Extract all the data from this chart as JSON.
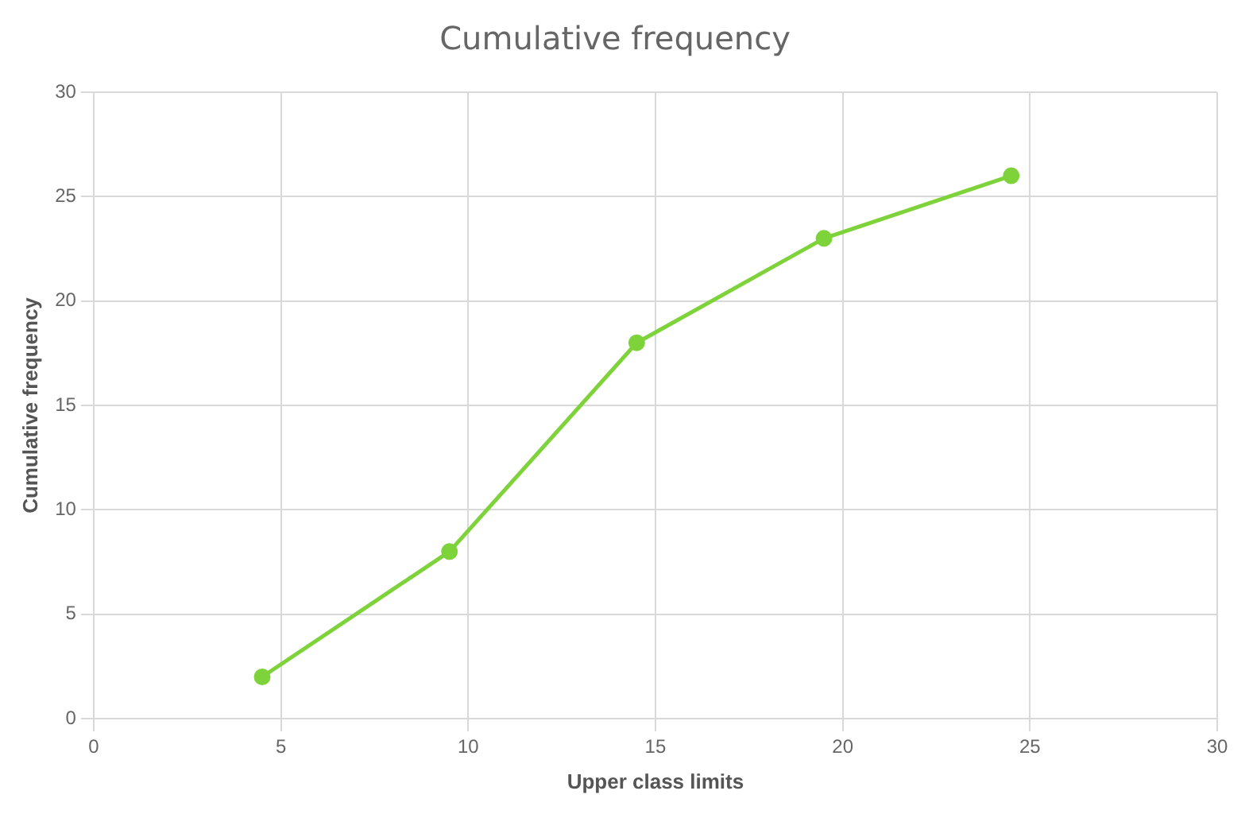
{
  "chart_data": {
    "type": "line",
    "title": "Cumulative frequency",
    "xlabel": "Upper class limits",
    "ylabel": "Cumulative frequency",
    "x": [
      4.5,
      9.5,
      14.5,
      19.5,
      24.5
    ],
    "series": [
      {
        "color": "#7ed33a",
        "values": [
          2,
          8,
          18,
          23,
          26
        ]
      }
    ],
    "xlim": [
      0,
      30
    ],
    "xticks": [
      0,
      5,
      10,
      15,
      20,
      25,
      30
    ],
    "ylim": [
      0,
      30
    ],
    "yticks": [
      0,
      5,
      10,
      15,
      20,
      25,
      30
    ],
    "grid": true,
    "legend": false,
    "marker": "circle",
    "line_style": "solid"
  }
}
